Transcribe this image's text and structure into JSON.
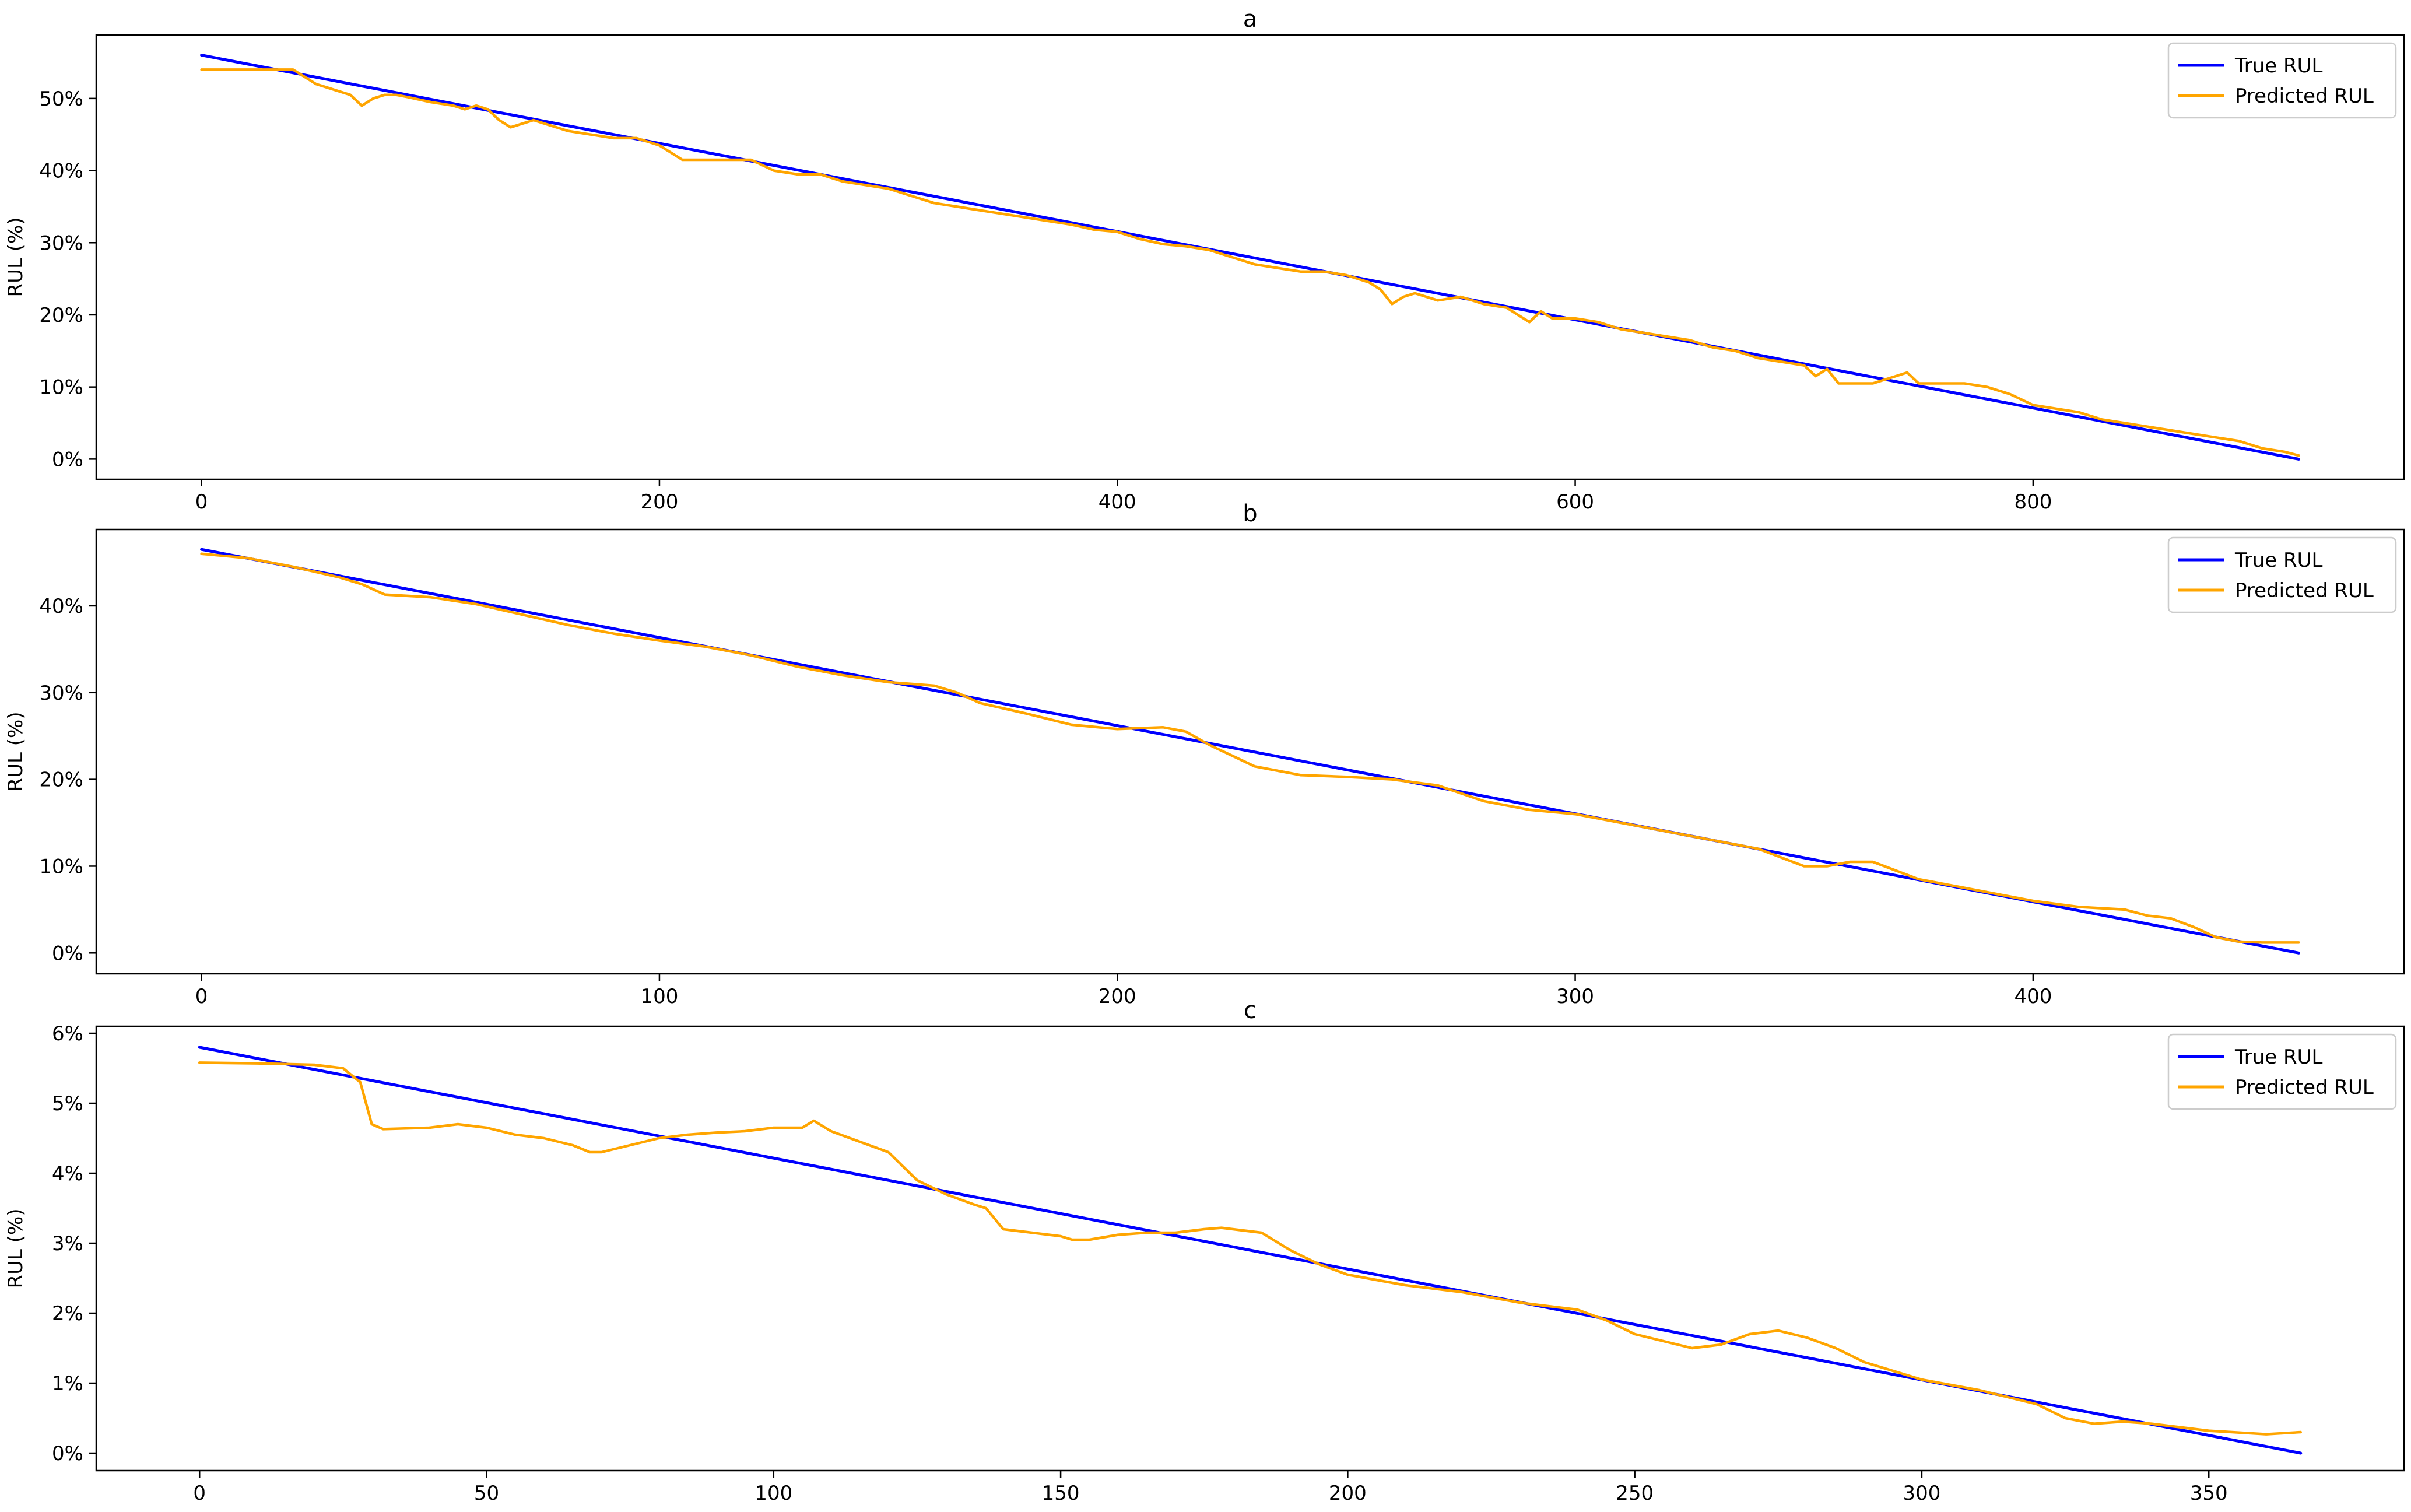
{
  "chart_data": [
    {
      "type": "line",
      "title": "a",
      "xlabel": "",
      "ylabel": "RUL (%)",
      "xlim": [
        -46,
        962
      ],
      "ylim": [
        -2.8,
        58.8
      ],
      "xticks": [
        0,
        200,
        400,
        600,
        800
      ],
      "yticks": [
        0,
        10,
        20,
        30,
        40,
        50
      ],
      "ytick_suffix": "%",
      "grid": false,
      "legend": "top-right",
      "series": [
        {
          "name": "True RUL",
          "color": "#0000ff",
          "x": [
            0,
            916
          ],
          "y": [
            56,
            0
          ]
        },
        {
          "name": "Predicted RUL",
          "color": "#ffa500",
          "x": [
            0,
            20,
            40,
            45,
            50,
            55,
            60,
            65,
            70,
            75,
            80,
            85,
            90,
            100,
            110,
            115,
            120,
            125,
            130,
            135,
            140,
            145,
            150,
            160,
            170,
            180,
            190,
            200,
            210,
            220,
            230,
            240,
            250,
            260,
            270,
            280,
            290,
            300,
            310,
            320,
            330,
            340,
            350,
            360,
            370,
            380,
            390,
            400,
            410,
            420,
            430,
            440,
            450,
            460,
            470,
            480,
            490,
            500,
            510,
            515,
            520,
            525,
            530,
            540,
            550,
            560,
            570,
            575,
            580,
            585,
            590,
            600,
            610,
            620,
            630,
            640,
            650,
            660,
            670,
            680,
            690,
            700,
            705,
            710,
            715,
            720,
            730,
            740,
            745,
            750,
            760,
            770,
            780,
            790,
            800,
            810,
            820,
            830,
            840,
            850,
            860,
            870,
            880,
            890,
            900,
            910,
            916
          ],
          "y": [
            54,
            54,
            54,
            53,
            52,
            51.5,
            51,
            50.5,
            49,
            50,
            50.5,
            50.5,
            50.2,
            49.5,
            49,
            48.5,
            49,
            48.5,
            47,
            46,
            46.5,
            47,
            46.5,
            45.5,
            45,
            44.5,
            44.5,
            43.5,
            41.5,
            41.5,
            41.5,
            41.5,
            40,
            39.5,
            39.5,
            38.5,
            38,
            37.5,
            36.5,
            35.5,
            35,
            34.5,
            34,
            33.5,
            33,
            32.5,
            31.8,
            31.5,
            30.5,
            29.8,
            29.5,
            29,
            28,
            27,
            26.5,
            26,
            26,
            25.5,
            24.5,
            23.5,
            21.5,
            22.5,
            23,
            22,
            22.5,
            21.5,
            21,
            20,
            19,
            20.5,
            19.5,
            19.5,
            19,
            18,
            17.5,
            17,
            16.5,
            15.5,
            15,
            14,
            13.5,
            13,
            11.5,
            12.5,
            10.5,
            10.5,
            10.5,
            11.5,
            12,
            10.5,
            10.5,
            10.5,
            10,
            9,
            7.5,
            7,
            6.5,
            5.5,
            5,
            4.5,
            4,
            3.5,
            3,
            2.5,
            1.5,
            1,
            0.5
          ]
        }
      ]
    },
    {
      "type": "line",
      "title": "b",
      "xlabel": "",
      "ylabel": "RUL (%)",
      "xlim": [
        -23,
        481
      ],
      "ylim": [
        -2.4,
        48.8
      ],
      "xticks": [
        0,
        100,
        200,
        300,
        400
      ],
      "yticks": [
        0,
        10,
        20,
        30,
        40
      ],
      "ytick_suffix": "%",
      "grid": false,
      "legend": "top-right",
      "series": [
        {
          "name": "True RUL",
          "color": "#0000ff",
          "x": [
            0,
            458
          ],
          "y": [
            46.5,
            0
          ]
        },
        {
          "name": "Predicted RUL",
          "color": "#ffa500",
          "x": [
            0,
            10,
            20,
            30,
            35,
            40,
            50,
            60,
            70,
            80,
            90,
            100,
            110,
            120,
            130,
            140,
            150,
            160,
            165,
            170,
            180,
            190,
            200,
            210,
            215,
            220,
            230,
            240,
            250,
            260,
            270,
            280,
            290,
            300,
            310,
            320,
            330,
            340,
            345,
            350,
            355,
            360,
            365,
            370,
            375,
            380,
            390,
            400,
            410,
            420,
            425,
            430,
            435,
            440,
            445,
            450,
            458
          ],
          "y": [
            46,
            45.5,
            44.5,
            43.3,
            42.5,
            41.3,
            41,
            40.2,
            39,
            37.8,
            36.8,
            36,
            35.3,
            34.3,
            33,
            32,
            31.2,
            30.8,
            30,
            28.8,
            27.6,
            26.3,
            25.8,
            26,
            25.5,
            24,
            21.5,
            20.5,
            20.3,
            20,
            19.3,
            17.5,
            16.5,
            16,
            15,
            14,
            13,
            12,
            11,
            10,
            10,
            10.5,
            10.5,
            9.5,
            8.5,
            8,
            7,
            6,
            5.3,
            5,
            4.3,
            4,
            3,
            1.8,
            1.3,
            1.2,
            1.2
          ]
        }
      ]
    },
    {
      "type": "line",
      "title": "c",
      "xlabel": "",
      "ylabel": "RUL (%)",
      "xlim": [
        -18,
        384
      ],
      "ylim": [
        -0.25,
        6.1
      ],
      "xticks": [
        0,
        50,
        100,
        150,
        200,
        250,
        300,
        350
      ],
      "yticks": [
        0,
        1,
        2,
        3,
        4,
        5,
        6
      ],
      "ytick_suffix": "%",
      "grid": false,
      "legend": "top-right",
      "series": [
        {
          "name": "True RUL",
          "color": "#0000ff",
          "x": [
            0,
            366
          ],
          "y": [
            5.8,
            0
          ]
        },
        {
          "name": "Predicted RUL",
          "color": "#ffa500",
          "x": [
            0,
            10,
            20,
            25,
            28,
            30,
            32,
            40,
            45,
            50,
            55,
            60,
            65,
            68,
            70,
            75,
            80,
            85,
            90,
            95,
            100,
            105,
            107,
            110,
            115,
            120,
            125,
            130,
            135,
            137,
            140,
            145,
            150,
            152,
            155,
            160,
            165,
            170,
            175,
            178,
            180,
            185,
            190,
            195,
            200,
            210,
            220,
            230,
            240,
            245,
            250,
            255,
            260,
            265,
            270,
            275,
            280,
            285,
            290,
            300,
            310,
            320,
            325,
            330,
            335,
            340,
            350,
            360,
            366
          ],
          "y": [
            5.58,
            5.57,
            5.55,
            5.5,
            5.3,
            4.7,
            4.63,
            4.65,
            4.7,
            4.65,
            4.55,
            4.5,
            4.4,
            4.3,
            4.3,
            4.4,
            4.5,
            4.55,
            4.58,
            4.6,
            4.65,
            4.65,
            4.75,
            4.6,
            4.45,
            4.3,
            3.9,
            3.7,
            3.55,
            3.5,
            3.2,
            3.15,
            3.1,
            3.05,
            3.05,
            3.12,
            3.15,
            3.15,
            3.2,
            3.22,
            3.2,
            3.15,
            2.9,
            2.7,
            2.55,
            2.4,
            2.3,
            2.15,
            2.05,
            1.9,
            1.7,
            1.6,
            1.5,
            1.55,
            1.7,
            1.75,
            1.65,
            1.5,
            1.3,
            1.05,
            0.9,
            0.7,
            0.5,
            0.42,
            0.45,
            0.42,
            0.32,
            0.27,
            0.3
          ]
        }
      ]
    }
  ]
}
